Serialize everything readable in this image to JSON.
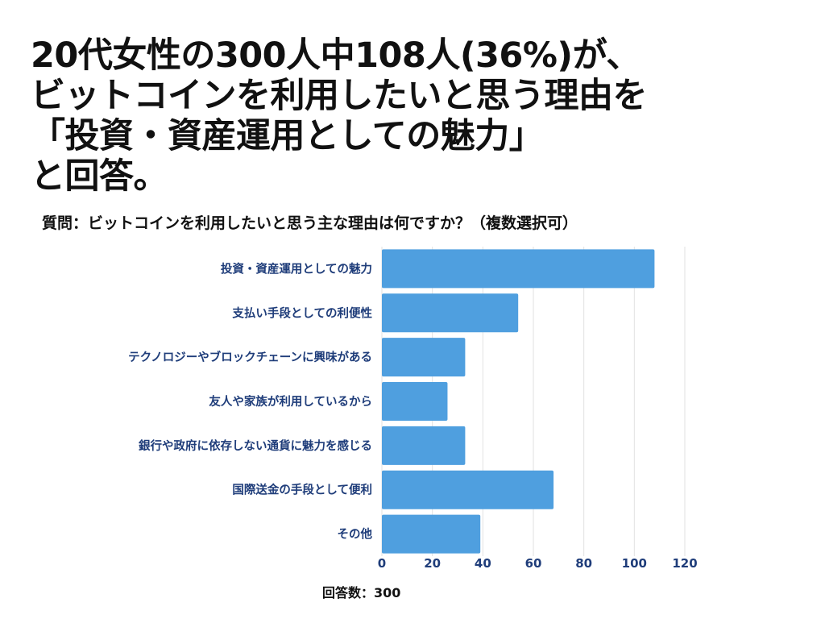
{
  "headline": {
    "lines": [
      "20代女性の300人中108人(36%)が、",
      "ビットコインを利用したいと思う理由を",
      "「投資・資産運用としての魅力」",
      "と回答。"
    ]
  },
  "question": "質問：ビットコインを利用したいと思う主な理由は何ですか？（複数選択可）",
  "xaxis_title": "回答数：300",
  "colors": {
    "bar": "#4f9fdf",
    "label": "#1f3d7a",
    "grid": "#e2e2e2"
  },
  "chart_data": {
    "type": "bar",
    "orientation": "horizontal",
    "categories": [
      "投資・資産運用としての魅力",
      "支払い手段としての利便性",
      "テクノロジーやブロックチェーンに興味がある",
      "友人や家族が利用しているから",
      "銀行や政府に依存しない通貨に魅力を感じる",
      "国際送金の手段として便利",
      "その他"
    ],
    "values": [
      108,
      54,
      33,
      26,
      33,
      68,
      39
    ],
    "xlim": [
      0,
      120
    ],
    "xticks": [
      0,
      20,
      40,
      60,
      80,
      100,
      120
    ],
    "xlabel": "回答数：300",
    "grid": true
  }
}
